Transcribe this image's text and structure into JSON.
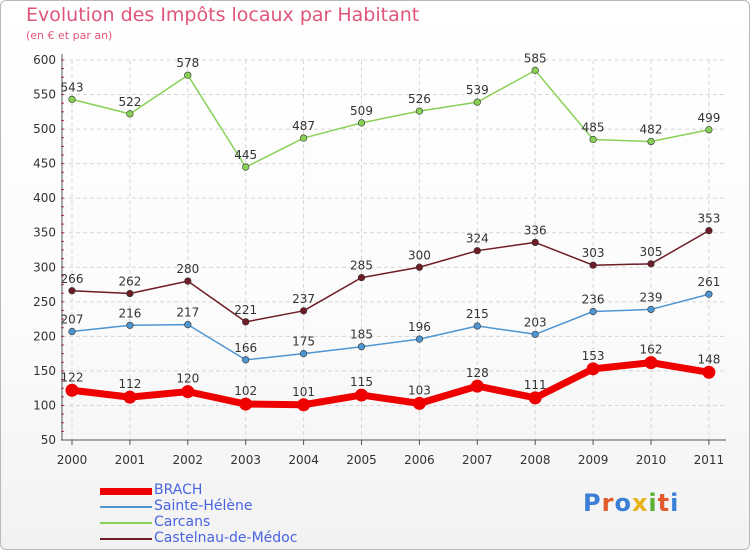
{
  "header": {
    "title": "Evolution des Impôts locaux par Habitant",
    "subtitle": "(en € et par an)"
  },
  "logo": {
    "text": "Proxiti",
    "colors": [
      "#3a7fd5",
      "#e05a2b",
      "#3a7fd5",
      "#e8b21a",
      "#59b233",
      "#e05a2b",
      "#3a7fd5"
    ]
  },
  "chart_data": {
    "type": "line",
    "categories": [
      "2000",
      "2001",
      "2002",
      "2003",
      "2004",
      "2005",
      "2006",
      "2007",
      "2008",
      "2009",
      "2010",
      "2011"
    ],
    "ylim": [
      50,
      600
    ],
    "yticks": [
      50,
      100,
      150,
      200,
      250,
      300,
      350,
      400,
      450,
      500,
      550,
      600
    ],
    "grid": true,
    "legend_position": "bottom-left",
    "series": [
      {
        "name": "Carcans",
        "color": "#88d156",
        "values": [
          543,
          522,
          578,
          445,
          487,
          509,
          526,
          539,
          585,
          485,
          482,
          499
        ]
      },
      {
        "name": "Castelnau-de-Médoc",
        "color": "#6e1c26",
        "values": [
          266,
          262,
          280,
          221,
          237,
          285,
          300,
          324,
          336,
          303,
          305,
          353
        ]
      },
      {
        "name": "Sainte-Hélène",
        "color": "#4e95d1",
        "values": [
          207,
          216,
          217,
          166,
          175,
          185,
          196,
          215,
          203,
          236,
          239,
          261
        ]
      },
      {
        "name": "BRACH",
        "color": "#ee0000",
        "values": [
          122,
          112,
          120,
          102,
          101,
          115,
          103,
          128,
          111,
          153,
          162,
          148
        ]
      }
    ],
    "legend": [
      {
        "name": "BRACH",
        "color": "#ee0000",
        "text_color": "#4a64e0"
      },
      {
        "name": "Sainte-Hélène",
        "color": "#4e95d1",
        "text_color": "#4a64e0"
      },
      {
        "name": "Carcans",
        "color": "#88d156",
        "text_color": "#4a64e0"
      },
      {
        "name": "Castelnau-de-Médoc",
        "color": "#6e1c26",
        "text_color": "#4a64e0"
      }
    ]
  }
}
